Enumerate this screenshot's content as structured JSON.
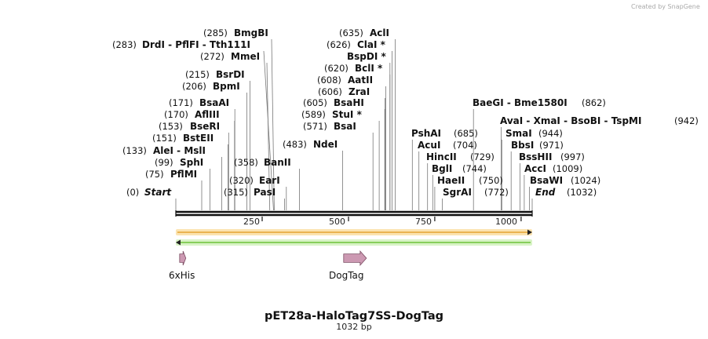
{
  "watermark": "Created by SnapGene",
  "title": "pET28a-HaloTag7SS-DogTag",
  "subtitle": "1032 bp",
  "total_bp": 1032,
  "ticks": [
    {
      "label": "250",
      "bp": 250
    },
    {
      "label": "500",
      "bp": 500
    },
    {
      "label": "750",
      "bp": 750
    },
    {
      "label": "1000",
      "bp": 1000
    }
  ],
  "sites": [
    {
      "group": "s01",
      "bp": 0,
      "pos": "(0)",
      "label": "Start",
      "italic": true
    },
    {
      "group": "s02",
      "bp": 75,
      "pos": "(75)",
      "label": "PflMI"
    },
    {
      "group": "s03",
      "bp": 99,
      "pos": "(99)",
      "label": "SphI"
    },
    {
      "group": "s04",
      "bp": 133,
      "pos": "(133)",
      "label": "AleI  -  MslI"
    },
    {
      "group": "s05",
      "bp": 151,
      "pos": "(151)",
      "label": "BstEII"
    },
    {
      "group": "s06",
      "bp": 153,
      "pos": "(153)",
      "label": "BseRI"
    },
    {
      "group": "s07",
      "bp": 170,
      "pos": "(170)",
      "label": "AflIII"
    },
    {
      "group": "s08",
      "bp": 171,
      "pos": "(171)",
      "label": "BsaAI"
    },
    {
      "group": "s09",
      "bp": 206,
      "pos": "(206)",
      "label": "BpmI"
    },
    {
      "group": "s10",
      "bp": 215,
      "pos": "(215)",
      "label": "BsrDI"
    },
    {
      "group": "s11",
      "bp": 272,
      "pos": "(272)",
      "label": "MmeI"
    },
    {
      "group": "s12",
      "bp": 283,
      "pos": "(283)",
      "label": "DrdI  -  PflFI  -  Tth111I",
      "pos_first": true
    },
    {
      "group": "s13",
      "bp": 285,
      "pos": "(285)",
      "label": "BmgBI"
    },
    {
      "group": "s14",
      "bp": 315,
      "pos": "(315)",
      "label": "PasI"
    },
    {
      "group": "s15",
      "bp": 320,
      "pos": "(320)",
      "label": "EarI"
    },
    {
      "group": "s16",
      "bp": 358,
      "pos": "(358)",
      "label": "BanII"
    },
    {
      "group": "s17",
      "bp": 483,
      "pos": "(483)",
      "label": "NdeI"
    },
    {
      "group": "s18",
      "bp": 571,
      "pos": "(571)",
      "label": "BsaI"
    },
    {
      "group": "s19",
      "bp": 589,
      "pos": "(589)",
      "label": "StuI *"
    },
    {
      "group": "s20",
      "bp": 605,
      "pos": "(605)",
      "label": "BsaHI"
    },
    {
      "group": "s21",
      "bp": 606,
      "pos": "(606)",
      "label": "ZraI"
    },
    {
      "group": "s22",
      "bp": 608,
      "pos": "(608)",
      "label": "AatII"
    },
    {
      "group": "s23",
      "bp": 620,
      "pos": "(620)",
      "label": "BclI *"
    },
    {
      "group": "s24",
      "bp": 620,
      "pos": "",
      "label": "BspDI *"
    },
    {
      "group": "s25",
      "bp": 626,
      "pos": "(626)",
      "label": "ClaI *"
    },
    {
      "group": "s26",
      "bp": 635,
      "pos": "(635)",
      "label": "AclI"
    },
    {
      "group": "s27",
      "bp": 685,
      "pos": "(685)",
      "label": "PshAI"
    },
    {
      "group": "s28",
      "bp": 704,
      "pos": "(704)",
      "label": "AcuI"
    },
    {
      "group": "s29",
      "bp": 729,
      "pos": "(729)",
      "label": "HincII"
    },
    {
      "group": "s30",
      "bp": 744,
      "pos": "(744)",
      "label": "BglI"
    },
    {
      "group": "s31",
      "bp": 750,
      "pos": "(750)",
      "label": "HaeII"
    },
    {
      "group": "s32",
      "bp": 772,
      "pos": "(772)",
      "label": "SgrAI"
    },
    {
      "group": "s33",
      "bp": 862,
      "pos": "(862)",
      "label": "BaeGI  -  Bme1580I"
    },
    {
      "group": "s34",
      "bp": 942,
      "pos": "(942)",
      "label": "AvaI  -  XmaI  -  BsoBI  -  TspMI"
    },
    {
      "group": "s35",
      "bp": 944,
      "pos": "(944)",
      "label": "SmaI"
    },
    {
      "group": "s36",
      "bp": 971,
      "pos": "(971)",
      "label": "BbsI"
    },
    {
      "group": "s37",
      "bp": 997,
      "pos": "(997)",
      "label": "BssHII"
    },
    {
      "group": "s38",
      "bp": 1009,
      "pos": "(1009)",
      "label": "AccI"
    },
    {
      "group": "s39",
      "bp": 1024,
      "pos": "(1024)",
      "label": "BsaWI"
    },
    {
      "group": "s40",
      "bp": 1032,
      "pos": "(1032)",
      "label": "End",
      "italic": true
    }
  ],
  "features": [
    {
      "group": "f1",
      "name": "6xHis",
      "start": 11,
      "end": 29
    },
    {
      "group": "f2",
      "name": "DogTag",
      "start": 486,
      "end": 552
    }
  ],
  "colors": {
    "forward_strand": "#f0a820",
    "forward_fill": "#fbe3b0",
    "reverse_strand": "#6ccd2c",
    "reverse_fill": "#d8f3c6",
    "feature_fill": "#cc99b2",
    "feature_stroke": "#7a4a60",
    "backbone": "#111111"
  }
}
